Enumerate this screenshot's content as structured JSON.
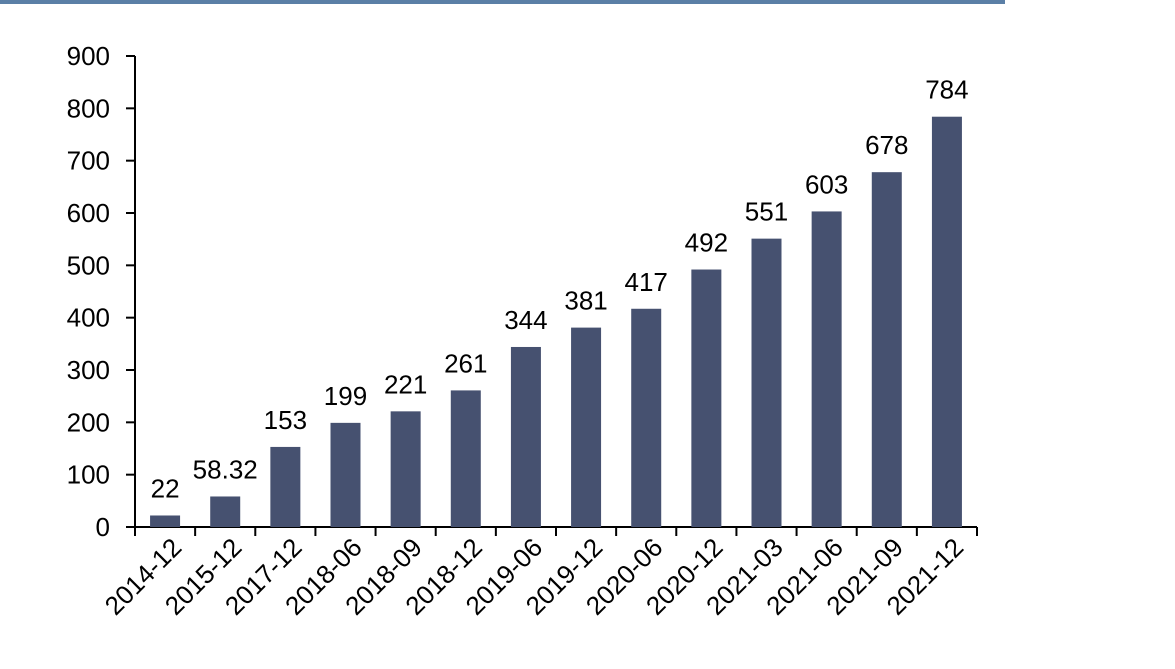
{
  "chart_data": {
    "type": "bar",
    "title": "",
    "xlabel": "",
    "ylabel": "",
    "categories": [
      "2014-12",
      "2015-12",
      "2017-12",
      "2018-06",
      "2018-09",
      "2018-12",
      "2019-06",
      "2019-12",
      "2020-06",
      "2020-12",
      "2021-03",
      "2021-06",
      "2021-09",
      "2021-12"
    ],
    "values": [
      22,
      58.32,
      153,
      199,
      221,
      261,
      344,
      381,
      417,
      492,
      551,
      603,
      678,
      784
    ],
    "data_labels": [
      "22",
      "58.32",
      "153",
      "199",
      "221",
      "261",
      "344",
      "381",
      "417",
      "492",
      "551",
      "603",
      "678",
      "784"
    ],
    "ylim": [
      0,
      900
    ],
    "yticks": [
      0,
      100,
      200,
      300,
      400,
      500,
      600,
      700,
      800,
      900
    ],
    "grid": false,
    "legend": "none",
    "bar_color": "#465170",
    "accent_color": "#5b7fa6"
  }
}
